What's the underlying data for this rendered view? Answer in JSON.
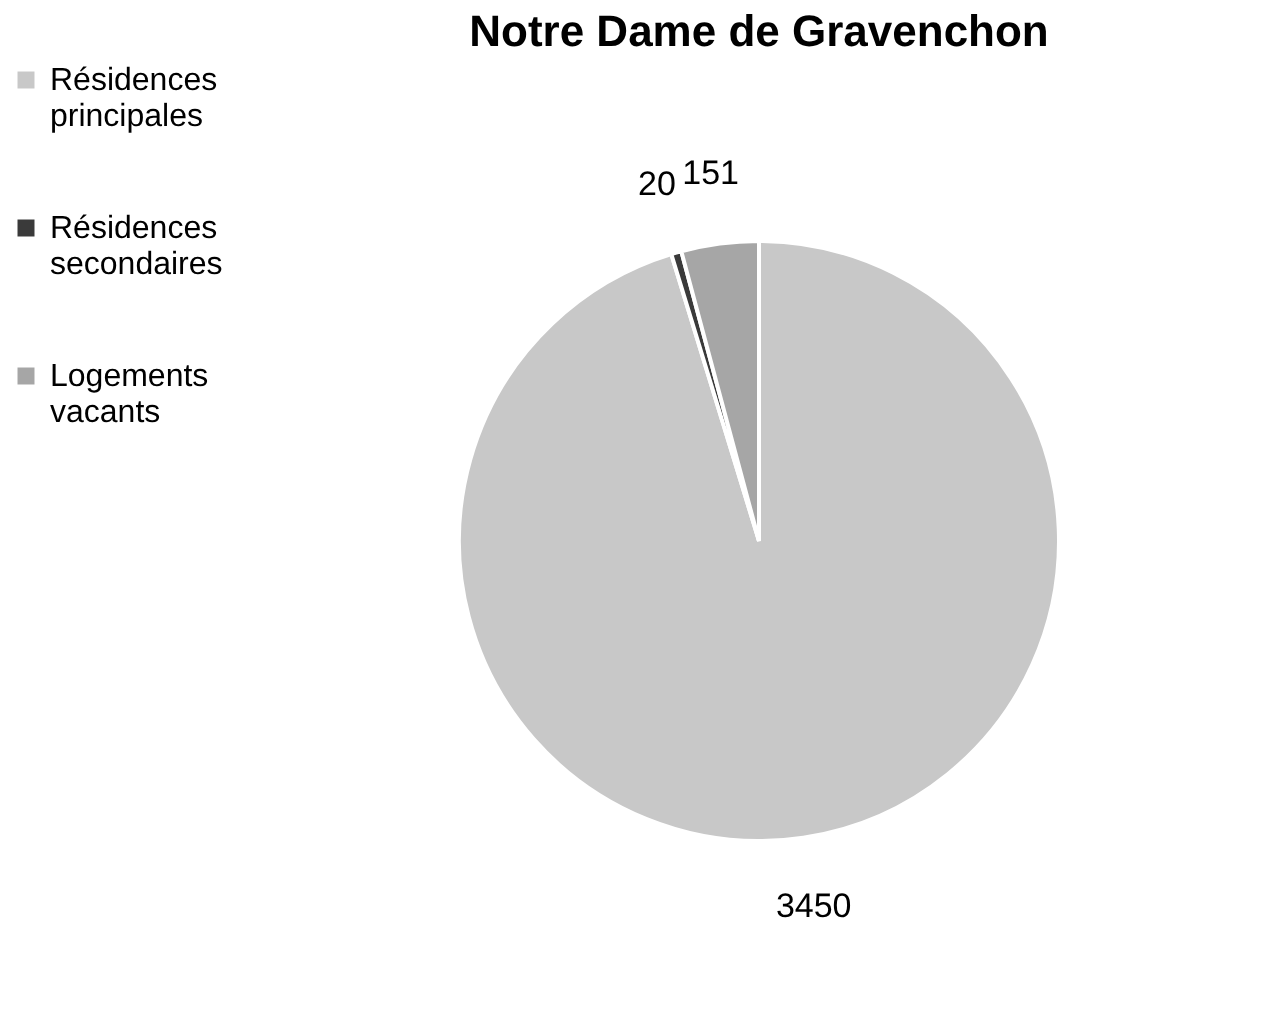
{
  "chart_data": {
    "type": "pie",
    "title": "Notre Dame de Gravenchon",
    "categories": [
      "Résidences principales",
      "Résidences secondaires",
      "Logements vacants"
    ],
    "values": [
      3450,
      20,
      151
    ],
    "colors": [
      "#c8c8c8",
      "#3a3a3a",
      "#a6a6a6"
    ],
    "data_labels": true,
    "legend": "left"
  }
}
